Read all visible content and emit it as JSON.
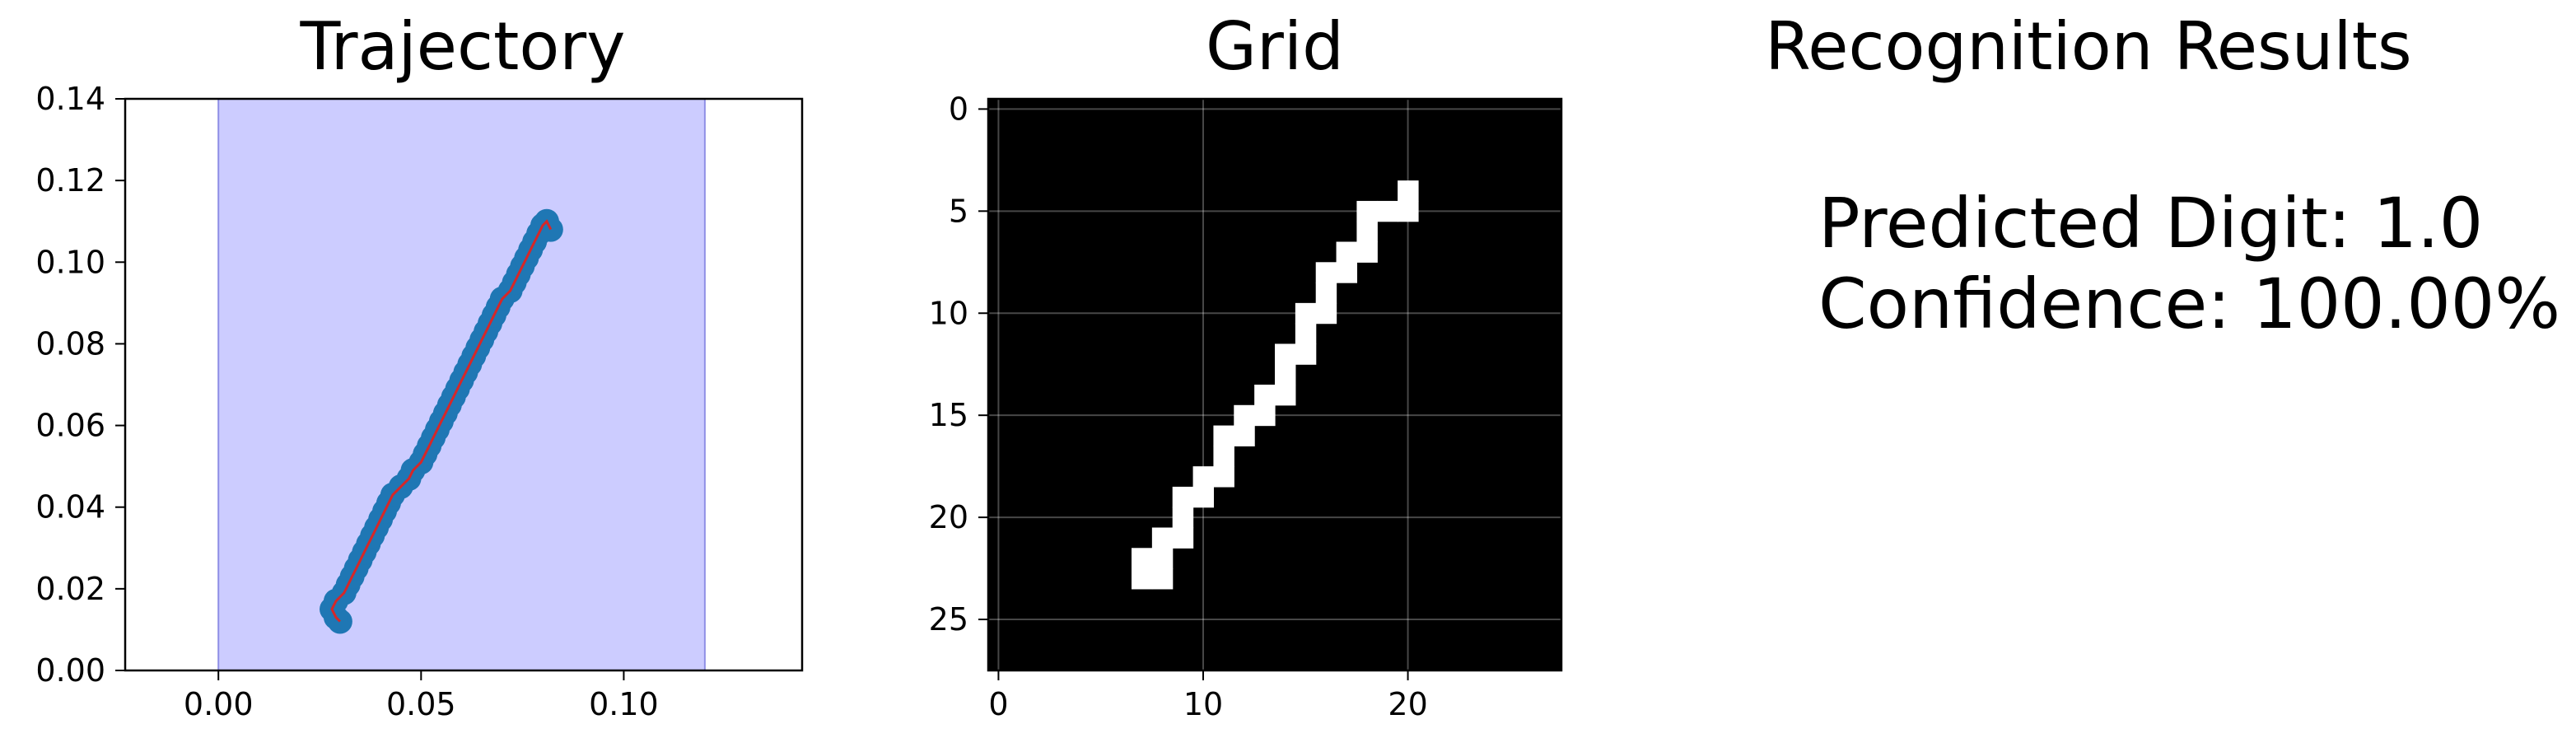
{
  "chart_data": [
    {
      "type": "scatter",
      "title": "Trajectory",
      "xlim": [
        -0.023,
        0.144
      ],
      "ylim": [
        0.0,
        0.14
      ],
      "xticks": [
        "0.00",
        "0.05",
        "0.10"
      ],
      "xtick_values": [
        0.0,
        0.05,
        0.1
      ],
      "yticks": [
        "0.00",
        "0.02",
        "0.04",
        "0.06",
        "0.08",
        "0.10",
        "0.12",
        "0.14"
      ],
      "ytick_values": [
        0.0,
        0.02,
        0.04,
        0.06,
        0.08,
        0.1,
        0.12,
        0.14
      ],
      "shaded_x_range": [
        0.0,
        0.12
      ],
      "shade_color": "#ccccff",
      "point_color": "#1f77b4",
      "line_color": "#d62728",
      "points": [
        [
          0.03,
          0.012
        ],
        [
          0.029,
          0.013
        ],
        [
          0.028,
          0.015
        ],
        [
          0.029,
          0.017
        ],
        [
          0.031,
          0.019
        ],
        [
          0.032,
          0.021
        ],
        [
          0.033,
          0.023
        ],
        [
          0.034,
          0.025
        ],
        [
          0.035,
          0.027
        ],
        [
          0.036,
          0.029
        ],
        [
          0.037,
          0.031
        ],
        [
          0.038,
          0.033
        ],
        [
          0.039,
          0.035
        ],
        [
          0.04,
          0.037
        ],
        [
          0.041,
          0.039
        ],
        [
          0.042,
          0.041
        ],
        [
          0.043,
          0.043
        ],
        [
          0.045,
          0.045
        ],
        [
          0.047,
          0.047
        ],
        [
          0.048,
          0.049
        ],
        [
          0.05,
          0.051
        ],
        [
          0.051,
          0.053
        ],
        [
          0.052,
          0.055
        ],
        [
          0.053,
          0.057
        ],
        [
          0.054,
          0.059
        ],
        [
          0.055,
          0.061
        ],
        [
          0.056,
          0.063
        ],
        [
          0.057,
          0.065
        ],
        [
          0.058,
          0.067
        ],
        [
          0.059,
          0.069
        ],
        [
          0.06,
          0.071
        ],
        [
          0.061,
          0.073
        ],
        [
          0.062,
          0.075
        ],
        [
          0.063,
          0.077
        ],
        [
          0.064,
          0.079
        ],
        [
          0.065,
          0.081
        ],
        [
          0.066,
          0.083
        ],
        [
          0.067,
          0.085
        ],
        [
          0.068,
          0.087
        ],
        [
          0.069,
          0.089
        ],
        [
          0.07,
          0.091
        ],
        [
          0.072,
          0.093
        ],
        [
          0.073,
          0.095
        ],
        [
          0.074,
          0.097
        ],
        [
          0.075,
          0.099
        ],
        [
          0.076,
          0.101
        ],
        [
          0.077,
          0.103
        ],
        [
          0.078,
          0.105
        ],
        [
          0.079,
          0.107
        ],
        [
          0.08,
          0.109
        ],
        [
          0.081,
          0.11
        ],
        [
          0.082,
          0.108
        ]
      ]
    },
    {
      "type": "heatmap",
      "title": "Grid",
      "grid_size": 28,
      "xticks": [
        "0",
        "10",
        "20"
      ],
      "xtick_values": [
        0,
        10,
        20
      ],
      "yticks": [
        "0",
        "5",
        "10",
        "15",
        "20",
        "25"
      ],
      "ytick_values": [
        0,
        5,
        10,
        15,
        20,
        25
      ],
      "background_color": "#000000",
      "cell_color": "#ffffff",
      "filled_cells": [
        [
          4,
          20
        ],
        [
          5,
          18
        ],
        [
          5,
          19
        ],
        [
          5,
          20
        ],
        [
          6,
          18
        ],
        [
          7,
          17
        ],
        [
          7,
          18
        ],
        [
          8,
          16
        ],
        [
          8,
          17
        ],
        [
          9,
          16
        ],
        [
          10,
          15
        ],
        [
          10,
          16
        ],
        [
          11,
          15
        ],
        [
          12,
          14
        ],
        [
          12,
          15
        ],
        [
          13,
          14
        ],
        [
          14,
          13
        ],
        [
          14,
          14
        ],
        [
          15,
          12
        ],
        [
          15,
          13
        ],
        [
          16,
          11
        ],
        [
          16,
          12
        ],
        [
          17,
          11
        ],
        [
          18,
          10
        ],
        [
          18,
          11
        ],
        [
          19,
          9
        ],
        [
          19,
          10
        ],
        [
          20,
          9
        ],
        [
          21,
          8
        ],
        [
          21,
          9
        ],
        [
          22,
          7
        ],
        [
          22,
          8
        ],
        [
          23,
          7
        ],
        [
          23,
          8
        ]
      ]
    }
  ],
  "results": {
    "title": "Recognition Results",
    "predicted_line": "Predicted Digit: 1.0",
    "confidence_line": "Confidence: 100.00%"
  }
}
